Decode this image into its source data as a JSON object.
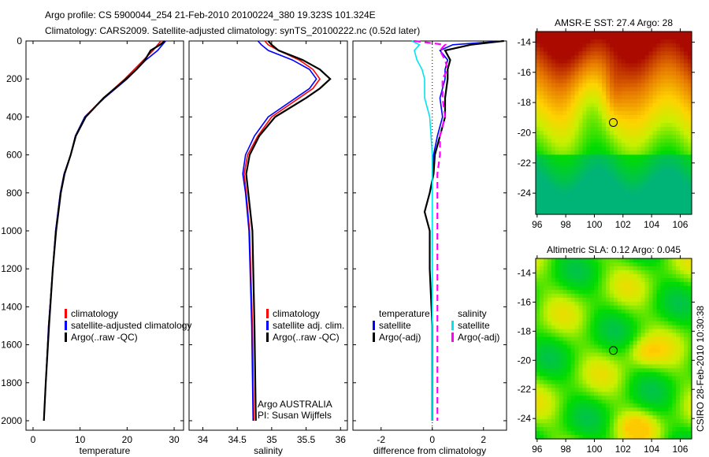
{
  "title_line1": "Argo profile: CS 5900044_254 21-Feb-2010 20100224_380 19.323S 101.324E",
  "title_line2": "Climatology: CARS2009. Satellite-adjusted climatology: synTS_20100222.nc (0.52d later)",
  "credit": "CSIRO 28-Feb-2010 10:30:38",
  "colors": {
    "clim": "#ff0000",
    "sat": "#0000ff",
    "argo": "#000000",
    "sal_sat": "#00e5ee",
    "sal_argo": "#ff00ff"
  },
  "chart_data": [
    {
      "type": "line",
      "id": "temp",
      "xlabel": "temperature",
      "xlim": [
        -1.5,
        32
      ],
      "xticks": [
        "0",
        "10",
        "20",
        "30"
      ],
      "xtickvals": [
        0,
        10,
        20,
        30
      ],
      "ylim": [
        0,
        2050
      ],
      "yticks": [
        "0",
        "200",
        "400",
        "600",
        "800",
        "1000",
        "1200",
        "1400",
        "1600",
        "1800",
        "2000"
      ],
      "ytickvals": [
        0,
        200,
        400,
        600,
        800,
        1000,
        1200,
        1400,
        1600,
        1800,
        2000
      ],
      "legend": [
        "climatology",
        "satellite-adjusted climatology",
        "Argo(..raw -QC)"
      ],
      "depth": [
        0,
        20,
        50,
        100,
        150,
        200,
        300,
        400,
        500,
        600,
        700,
        800,
        1000,
        1200,
        1500,
        1800,
        2000
      ],
      "series": [
        {
          "name": "climatology",
          "color": "clim",
          "values": [
            27.2,
            26.5,
            25.5,
            23.5,
            21.5,
            19.5,
            15,
            11,
            9,
            8,
            6.6,
            5.8,
            4.8,
            4.2,
            3.3,
            2.7,
            2.3
          ]
        },
        {
          "name": "satellite",
          "color": "sat",
          "values": [
            28.2,
            27.5,
            26.5,
            24,
            22,
            20,
            15.2,
            11,
            9,
            8,
            6.6,
            5.8,
            4.8,
            4.2,
            3.3,
            2.7,
            2.3
          ]
        },
        {
          "name": "Argo",
          "color": "argo",
          "values": [
            28,
            27,
            25,
            23.8,
            22,
            19.8,
            15,
            11.2,
            9.1,
            8,
            6.7,
            5.9,
            4.9,
            4.2,
            3.4,
            2.7,
            2.3
          ]
        }
      ]
    },
    {
      "type": "line",
      "id": "sal",
      "xlabel": "salinity",
      "xlim": [
        33.8,
        36.1
      ],
      "xticks": [
        "34",
        "34.5",
        "35",
        "35.5",
        "36"
      ],
      "xtickvals": [
        34,
        34.5,
        35,
        35.5,
        36
      ],
      "ylim": [
        0,
        2050
      ],
      "legend": [
        "climatology",
        "satellite adj. clim.",
        "Argo(..raw -QC)"
      ],
      "annotation": [
        "Argo AUSTRALIA",
        "PI: Susan Wijffels"
      ],
      "depth": [
        0,
        20,
        50,
        100,
        150,
        200,
        250,
        300,
        400,
        500,
        600,
        700,
        800,
        1000,
        1500,
        2000
      ],
      "series": [
        {
          "name": "climatology",
          "color": "clim",
          "values": [
            34.9,
            34.95,
            35.1,
            35.4,
            35.6,
            35.7,
            35.6,
            35.4,
            35.0,
            34.8,
            34.65,
            34.6,
            34.63,
            34.68,
            34.72,
            34.74
          ]
        },
        {
          "name": "satellite",
          "color": "sat",
          "values": [
            34.8,
            34.85,
            34.95,
            35.3,
            35.55,
            35.65,
            35.55,
            35.35,
            34.95,
            34.75,
            34.62,
            34.58,
            34.62,
            34.67,
            34.71,
            34.73
          ]
        },
        {
          "name": "Argo",
          "color": "argo",
          "values": [
            34.95,
            35.0,
            35.1,
            35.45,
            35.7,
            35.85,
            35.7,
            35.5,
            35.05,
            34.82,
            34.68,
            34.63,
            34.66,
            34.72,
            34.75,
            34.77
          ]
        }
      ]
    },
    {
      "type": "line",
      "id": "diff",
      "xlabel": "difference from climatology",
      "xlim": [
        -3.1,
        2.9
      ],
      "xticks": [
        "-2",
        "0",
        "2"
      ],
      "xtickvals": [
        -2,
        0,
        2
      ],
      "ylim": [
        0,
        2050
      ],
      "legend_t": [
        "temperature",
        "satellite",
        "Argo(-adj)"
      ],
      "legend_s": [
        "salinity",
        "satellite",
        "Argo(-adj)"
      ],
      "depth": [
        0,
        20,
        50,
        100,
        150,
        200,
        300,
        400,
        500,
        600,
        700,
        800,
        900,
        1000,
        1200,
        1500,
        2000
      ],
      "series": [
        {
          "name": "temp satellite",
          "color": "sat",
          "values": [
            2.8,
            0.8,
            0.3,
            0.6,
            0.5,
            0.5,
            0.3,
            0.4,
            0.2,
            0.05,
            0,
            0,
            0,
            0,
            0,
            0,
            0
          ]
        },
        {
          "name": "temp Argo",
          "color": "argo",
          "values": [
            2.8,
            1.5,
            0.5,
            0.7,
            0.6,
            0.6,
            0.5,
            0.5,
            0.3,
            0.1,
            0.05,
            -0.1,
            -0.3,
            -0.1,
            -0.1,
            0,
            0
          ]
        },
        {
          "name": "sal satellite",
          "color": "sal_sat",
          "values": [
            -0.8,
            -0.5,
            -0.7,
            -0.6,
            -0.4,
            -0.3,
            -0.3,
            -0.1,
            -0.05,
            0,
            0,
            0,
            0,
            0,
            0,
            0,
            0
          ]
        },
        {
          "name": "sal Argo",
          "color": "sal_argo",
          "values": [
            -0.7,
            0.5,
            0.3,
            0.5,
            0.6,
            0.4,
            0.4,
            0.5,
            0.3,
            0.3,
            0.2,
            0.2,
            0.2,
            0.2,
            0.2,
            0.2,
            0.2
          ]
        }
      ]
    },
    {
      "type": "heatmap",
      "id": "sst",
      "title": "AMSR-E SST: 27.4  Argo: 28",
      "xlim": [
        95.9,
        106.8
      ],
      "ylim": [
        -25.4,
        -13.3
      ],
      "xticks": [
        "96",
        "98",
        "100",
        "102",
        "104",
        "106"
      ],
      "xtickvals": [
        96,
        98,
        100,
        102,
        104,
        106
      ],
      "yticks": [
        "-14",
        "-16",
        "-18",
        "-20",
        "-22",
        "-24"
      ],
      "ytickvals": [
        -14,
        -16,
        -18,
        -20,
        -22,
        -24
      ],
      "argo_lon": 101.324,
      "argo_lat": -19.323
    },
    {
      "type": "heatmap",
      "id": "sla",
      "title": "Altimetric SLA: 0.12  Argo: 0.045",
      "xlim": [
        95.9,
        106.8
      ],
      "ylim": [
        -25.4,
        -13.0
      ],
      "xticks": [
        "96",
        "98",
        "100",
        "102",
        "104",
        "106"
      ],
      "xtickvals": [
        96,
        98,
        100,
        102,
        104,
        106
      ],
      "yticks": [
        "-14",
        "-16",
        "-18",
        "-20",
        "-22",
        "-24"
      ],
      "ytickvals": [
        -14,
        -16,
        -18,
        -20,
        -22,
        -24
      ],
      "argo_lon": 101.324,
      "argo_lat": -19.323
    }
  ]
}
